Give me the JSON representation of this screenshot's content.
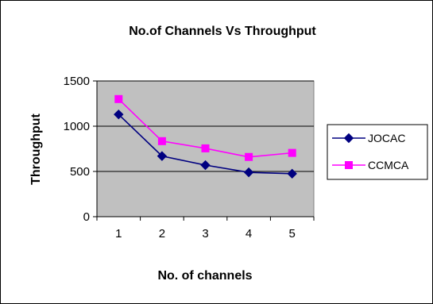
{
  "chart_data": {
    "type": "line",
    "title": "No.of Channels Vs Throughput",
    "xlabel": "No. of channels",
    "ylabel": "Throughput",
    "categories": [
      "1",
      "2",
      "3",
      "4",
      "5"
    ],
    "ylim": [
      0,
      1500
    ],
    "yticks": [
      "0",
      "500",
      "1000",
      "1500"
    ],
    "grid": true,
    "legend_position": "right",
    "plot_background": "#c0c0c0",
    "series": [
      {
        "name": "JOCAC",
        "values": [
          1130,
          670,
          570,
          490,
          475
        ],
        "color": "#000080",
        "marker": "diamond"
      },
      {
        "name": "CCMCA",
        "values": [
          1300,
          835,
          755,
          660,
          705
        ],
        "color": "#ff00ff",
        "marker": "square"
      }
    ]
  }
}
